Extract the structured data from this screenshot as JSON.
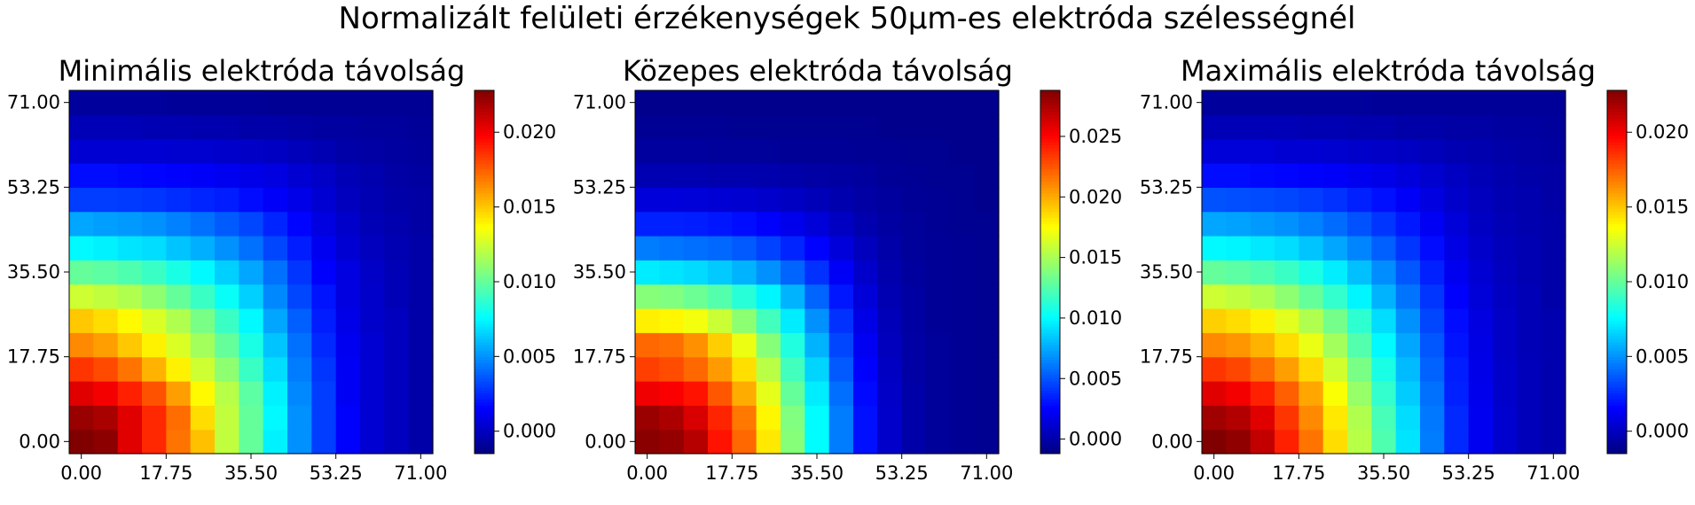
{
  "figure": {
    "suptitle": "Normalizált felületi érzékenységek 50µm-es elektróda szélességnél"
  },
  "chart_data": [
    {
      "type": "heatmap",
      "title": "Minimális elektróda távolság",
      "grid": false,
      "colormap": "jet",
      "xticks": [
        "0.00",
        "17.75",
        "35.50",
        "53.25",
        "71.00"
      ],
      "yticks": [
        "0.00",
        "17.75",
        "35.50",
        "53.25",
        "71.00"
      ],
      "xlim": [
        0,
        71
      ],
      "ylim": [
        0,
        71
      ],
      "cells": 15,
      "clim": [
        -0.0015,
        0.0228
      ],
      "colorbar_ticks": [
        "0.000",
        "0.005",
        "0.010",
        "0.015",
        "0.020"
      ],
      "colorbar_tick_values": [
        0.0,
        0.005,
        0.01,
        0.015,
        0.02
      ],
      "z": [
        [
          0.0228,
          0.0225,
          0.0205,
          0.0188,
          0.017,
          0.0152,
          0.0122,
          0.01,
          0.0073,
          0.005,
          0.003,
          0.0015,
          0.0005,
          0.0,
          -0.0005
        ],
        [
          0.0222,
          0.0218,
          0.0205,
          0.0188,
          0.0172,
          0.0145,
          0.0122,
          0.01,
          0.0075,
          0.005,
          0.003,
          0.0015,
          0.0005,
          0.0,
          -0.0005
        ],
        [
          0.0205,
          0.02,
          0.019,
          0.0178,
          0.016,
          0.0138,
          0.012,
          0.0098,
          0.0073,
          0.0048,
          0.003,
          0.0013,
          0.0005,
          0.0,
          -0.0005
        ],
        [
          0.0185,
          0.018,
          0.017,
          0.0155,
          0.014,
          0.0125,
          0.011,
          0.009,
          0.0068,
          0.0045,
          0.0028,
          0.0013,
          0.0005,
          0.0,
          -0.0005
        ],
        [
          0.0165,
          0.016,
          0.015,
          0.014,
          0.0128,
          0.0115,
          0.01,
          0.0082,
          0.0062,
          0.0042,
          0.0025,
          0.0012,
          0.0005,
          0.0,
          -0.0005
        ],
        [
          0.015,
          0.0145,
          0.0138,
          0.0128,
          0.0118,
          0.0105,
          0.009,
          0.0075,
          0.0055,
          0.0038,
          0.0022,
          0.001,
          0.0003,
          0.0,
          -0.0005
        ],
        [
          0.0125,
          0.0122,
          0.0118,
          0.011,
          0.01,
          0.009,
          0.0078,
          0.0065,
          0.0048,
          0.0032,
          0.002,
          0.0008,
          0.0003,
          -0.0002,
          -0.0005
        ],
        [
          0.01,
          0.0098,
          0.0095,
          0.009,
          0.0082,
          0.0075,
          0.0065,
          0.0055,
          0.0042,
          0.0028,
          0.0015,
          0.0008,
          0.0002,
          -0.0002,
          -0.0005
        ],
        [
          0.0075,
          0.0073,
          0.007,
          0.0068,
          0.0062,
          0.0057,
          0.005,
          0.0042,
          0.0032,
          0.0022,
          0.0012,
          0.0005,
          0.0,
          -0.0003,
          -0.0005
        ],
        [
          0.0055,
          0.0053,
          0.0052,
          0.005,
          0.0046,
          0.0042,
          0.0037,
          0.0032,
          0.0024,
          0.0016,
          0.0008,
          0.0003,
          -0.0002,
          -0.0004,
          -0.0006
        ],
        [
          0.003,
          0.003,
          0.0029,
          0.0028,
          0.0026,
          0.0024,
          0.0022,
          0.0018,
          0.0014,
          0.001,
          0.0005,
          0.0,
          -0.0003,
          -0.0005,
          -0.0006
        ],
        [
          0.0018,
          0.0018,
          0.0017,
          0.0016,
          0.0015,
          0.0014,
          0.0012,
          0.001,
          0.0008,
          0.0005,
          0.0002,
          -0.0002,
          -0.0004,
          -0.0006,
          -0.0007
        ],
        [
          0.0005,
          0.0005,
          0.0005,
          0.0005,
          0.0004,
          0.0004,
          0.0003,
          0.0002,
          0.0001,
          -0.0001,
          -0.0003,
          -0.0005,
          -0.0006,
          -0.0007,
          -0.0008
        ],
        [
          -0.0002,
          -0.0002,
          -0.0002,
          -0.0003,
          -0.0003,
          -0.0004,
          -0.0004,
          -0.0005,
          -0.0005,
          -0.0006,
          -0.0007,
          -0.0007,
          -0.0008,
          -0.0008,
          -0.0009
        ],
        [
          -0.0008,
          -0.0008,
          -0.0008,
          -0.0008,
          -0.0009,
          -0.0009,
          -0.0009,
          -0.0009,
          -0.001,
          -0.001,
          -0.001,
          -0.001,
          -0.001,
          -0.001,
          -0.001
        ]
      ]
    },
    {
      "type": "heatmap",
      "title": "Közepes elektróda távolság",
      "grid": false,
      "colormap": "jet",
      "xticks": [
        "0.00",
        "17.75",
        "35.50",
        "53.25",
        "71.00"
      ],
      "yticks": [
        "0.00",
        "17.75",
        "35.50",
        "53.25",
        "71.00"
      ],
      "xlim": [
        0,
        71
      ],
      "ylim": [
        0,
        71
      ],
      "cells": 15,
      "clim": [
        -0.0012,
        0.0288
      ],
      "colorbar_ticks": [
        "0.000",
        "0.005",
        "0.010",
        "0.015",
        "0.020",
        "0.025"
      ],
      "colorbar_tick_values": [
        0.0,
        0.005,
        0.01,
        0.015,
        0.02,
        0.025
      ],
      "z": [
        [
          0.0285,
          0.0282,
          0.0272,
          0.0245,
          0.022,
          0.0182,
          0.014,
          0.01,
          0.0062,
          0.003,
          0.001,
          0.0,
          -0.0004,
          -0.0006,
          -0.0007
        ],
        [
          0.028,
          0.0275,
          0.0262,
          0.024,
          0.0215,
          0.0178,
          0.0138,
          0.01,
          0.0062,
          0.003,
          0.001,
          0.0,
          -0.0004,
          -0.0006,
          -0.0007
        ],
        [
          0.0255,
          0.0252,
          0.0245,
          0.0225,
          0.02,
          0.0168,
          0.013,
          0.0095,
          0.0058,
          0.0028,
          0.0009,
          0.0,
          -0.0004,
          -0.0006,
          -0.0007
        ],
        [
          0.0232,
          0.0228,
          0.022,
          0.0205,
          0.0185,
          0.0155,
          0.012,
          0.0088,
          0.0052,
          0.0025,
          0.0008,
          -0.0001,
          -0.0004,
          -0.0006,
          -0.0007
        ],
        [
          0.022,
          0.0218,
          0.0208,
          0.019,
          0.017,
          0.014,
          0.011,
          0.0078,
          0.0046,
          0.0022,
          0.0006,
          -0.0001,
          -0.0004,
          -0.0006,
          -0.0007
        ],
        [
          0.018,
          0.0178,
          0.0172,
          0.016,
          0.0142,
          0.012,
          0.0095,
          0.0068,
          0.004,
          0.0018,
          0.0005,
          -0.0002,
          -0.0005,
          -0.0006,
          -0.0007
        ],
        [
          0.014,
          0.0138,
          0.0132,
          0.0125,
          0.0112,
          0.0098,
          0.0078,
          0.0055,
          0.0032,
          0.0014,
          0.0003,
          -0.0002,
          -0.0005,
          -0.0006,
          -0.0007
        ],
        [
          0.0095,
          0.0093,
          0.009,
          0.0085,
          0.0078,
          0.0068,
          0.0055,
          0.004,
          0.0023,
          0.001,
          0.0001,
          -0.0003,
          -0.0005,
          -0.0006,
          -0.0007
        ],
        [
          0.0062,
          0.006,
          0.0058,
          0.0056,
          0.0052,
          0.0045,
          0.0036,
          0.0026,
          0.0015,
          0.0006,
          0.0,
          -0.0004,
          -0.0005,
          -0.0006,
          -0.0007
        ],
        [
          0.0035,
          0.0035,
          0.0034,
          0.0032,
          0.0029,
          0.0025,
          0.002,
          0.0014,
          0.0008,
          0.0002,
          -0.0002,
          -0.0004,
          -0.0006,
          -0.0007,
          -0.0007
        ],
        [
          0.0015,
          0.0015,
          0.0014,
          0.0013,
          0.0012,
          0.001,
          0.0008,
          0.0005,
          0.0002,
          -0.0001,
          -0.0003,
          -0.0005,
          -0.0006,
          -0.0007,
          -0.0008
        ],
        [
          0.0003,
          0.0003,
          0.0003,
          0.0002,
          0.0002,
          0.0001,
          0.0,
          -0.0001,
          -0.0002,
          -0.0003,
          -0.0005,
          -0.0006,
          -0.0007,
          -0.0007,
          -0.0008
        ],
        [
          -0.0003,
          -0.0003,
          -0.0003,
          -0.0004,
          -0.0004,
          -0.0004,
          -0.0005,
          -0.0005,
          -0.0005,
          -0.0006,
          -0.0006,
          -0.0007,
          -0.0007,
          -0.0008,
          -0.0008
        ],
        [
          -0.0006,
          -0.0006,
          -0.0006,
          -0.0006,
          -0.0007,
          -0.0007,
          -0.0007,
          -0.0007,
          -0.0007,
          -0.0007,
          -0.0008,
          -0.0008,
          -0.0008,
          -0.0008,
          -0.0008
        ],
        [
          -0.0008,
          -0.0008,
          -0.0008,
          -0.0008,
          -0.0008,
          -0.0008,
          -0.0008,
          -0.0008,
          -0.0008,
          -0.0008,
          -0.0008,
          -0.0008,
          -0.0008,
          -0.0008,
          -0.0008
        ]
      ]
    },
    {
      "type": "heatmap",
      "title": "Maximális elektróda távolság",
      "grid": false,
      "colormap": "jet",
      "xticks": [
        "0.00",
        "17.75",
        "35.50",
        "53.25",
        "71.00"
      ],
      "yticks": [
        "0.00",
        "17.75",
        "35.50",
        "53.25",
        "71.00"
      ],
      "xlim": [
        0,
        71
      ],
      "ylim": [
        0,
        71
      ],
      "cells": 15,
      "clim": [
        -0.0015,
        0.0228
      ],
      "colorbar_ticks": [
        "0.000",
        "0.005",
        "0.010",
        "0.015",
        "0.020"
      ],
      "colorbar_tick_values": [
        0.0,
        0.005,
        0.01,
        0.015,
        0.02
      ],
      "z": [
        [
          0.0228,
          0.0224,
          0.0212,
          0.019,
          0.017,
          0.0145,
          0.012,
          0.0095,
          0.007,
          0.0045,
          0.0025,
          0.0012,
          0.0004,
          -0.0001,
          -0.0004
        ],
        [
          0.022,
          0.0216,
          0.0205,
          0.0185,
          0.0165,
          0.0142,
          0.0118,
          0.0093,
          0.0068,
          0.0044,
          0.0025,
          0.0012,
          0.0004,
          -0.0001,
          -0.0004
        ],
        [
          0.0205,
          0.02,
          0.019,
          0.0175,
          0.0158,
          0.0136,
          0.0112,
          0.0088,
          0.0064,
          0.0042,
          0.0023,
          0.0011,
          0.0003,
          -0.0001,
          -0.0004
        ],
        [
          0.0185,
          0.0181,
          0.0172,
          0.016,
          0.0146,
          0.0126,
          0.0105,
          0.0082,
          0.006,
          0.0039,
          0.0022,
          0.001,
          0.0003,
          -0.0001,
          -0.0004
        ],
        [
          0.0165,
          0.0162,
          0.0155,
          0.0145,
          0.0132,
          0.0115,
          0.0096,
          0.0075,
          0.0055,
          0.0036,
          0.002,
          0.0009,
          0.0002,
          -0.0002,
          -0.0004
        ],
        [
          0.0148,
          0.0145,
          0.014,
          0.013,
          0.0118,
          0.0104,
          0.0087,
          0.0068,
          0.005,
          0.0032,
          0.0018,
          0.0008,
          0.0002,
          -0.0002,
          -0.0004
        ],
        [
          0.0125,
          0.0122,
          0.0118,
          0.011,
          0.01,
          0.0088,
          0.0074,
          0.0058,
          0.0043,
          0.0028,
          0.0015,
          0.0006,
          0.0001,
          -0.0002,
          -0.0005
        ],
        [
          0.01,
          0.0098,
          0.0095,
          0.009,
          0.0082,
          0.0072,
          0.0061,
          0.0049,
          0.0036,
          0.0023,
          0.0012,
          0.0005,
          0.0,
          -0.0003,
          -0.0005
        ],
        [
          0.0075,
          0.0074,
          0.0071,
          0.0068,
          0.0062,
          0.0055,
          0.0047,
          0.0038,
          0.0028,
          0.0018,
          0.0009,
          0.0003,
          -0.0001,
          -0.0003,
          -0.0005
        ],
        [
          0.0055,
          0.0054,
          0.0052,
          0.005,
          0.0046,
          0.0041,
          0.0035,
          0.0028,
          0.0021,
          0.0013,
          0.0006,
          0.0001,
          -0.0002,
          -0.0004,
          -0.0005
        ],
        [
          0.0035,
          0.0034,
          0.0033,
          0.0032,
          0.003,
          0.0027,
          0.0023,
          0.0019,
          0.0014,
          0.0008,
          0.0003,
          0.0,
          -0.0003,
          -0.0004,
          -0.0006
        ],
        [
          0.0018,
          0.0018,
          0.0017,
          0.0016,
          0.0015,
          0.0014,
          0.0012,
          0.001,
          0.0007,
          0.0004,
          0.0001,
          -0.0002,
          -0.0004,
          -0.0005,
          -0.0006
        ],
        [
          0.0006,
          0.0006,
          0.0006,
          0.0005,
          0.0005,
          0.0004,
          0.0003,
          0.0002,
          0.0001,
          -0.0001,
          -0.0003,
          -0.0004,
          -0.0005,
          -0.0006,
          -0.0007
        ],
        [
          -0.0002,
          -0.0002,
          -0.0002,
          -0.0002,
          -0.0003,
          -0.0003,
          -0.0004,
          -0.0004,
          -0.0005,
          -0.0005,
          -0.0006,
          -0.0006,
          -0.0007,
          -0.0007,
          -0.0008
        ],
        [
          -0.0008,
          -0.0008,
          -0.0008,
          -0.0008,
          -0.0008,
          -0.0008,
          -0.0008,
          -0.0009,
          -0.0009,
          -0.0009,
          -0.0009,
          -0.0009,
          -0.0009,
          -0.0009,
          -0.0009
        ]
      ]
    }
  ]
}
